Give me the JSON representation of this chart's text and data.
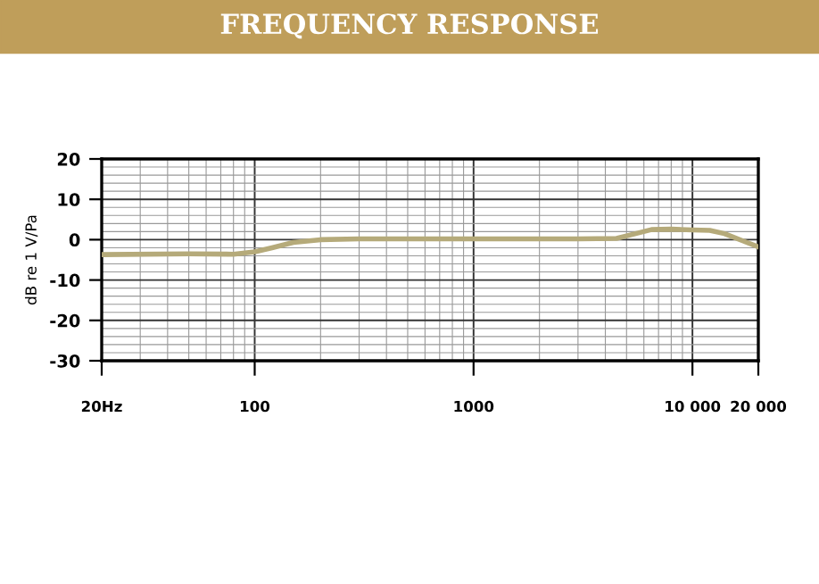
{
  "chart_data": {
    "type": "line",
    "title": "FREQUENCY RESPONSE",
    "ylabel": "dB re 1 V/Pa",
    "x": [
      20,
      50,
      80,
      100,
      120,
      150,
      200,
      300,
      1000,
      3000,
      4500,
      5500,
      6500,
      8000,
      10000,
      12000,
      14000,
      17000,
      20000
    ],
    "series": [
      {
        "color": "#b5aa7a",
        "values": [
          -3.7,
          -3.5,
          -3.6,
          -3,
          -2,
          -0.7,
          0,
          0.2,
          0.2,
          0.2,
          0.3,
          1.5,
          2.5,
          2.6,
          2.4,
          2.3,
          1.5,
          -0.3,
          -1.8
        ]
      }
    ],
    "log": "x",
    "xlim": [
      20,
      20000
    ],
    "ylim": [
      -30,
      20
    ],
    "xticks": [
      {
        "value": 20,
        "label": "20Hz"
      },
      100,
      1000,
      {
        "value": 10000,
        "label": "10 000"
      },
      {
        "value": 20000,
        "label": "20 000"
      }
    ],
    "yticks": [
      -30,
      -20,
      -10,
      0,
      10,
      20
    ],
    "grid": true,
    "marker": "none",
    "line_style": "solid"
  }
}
